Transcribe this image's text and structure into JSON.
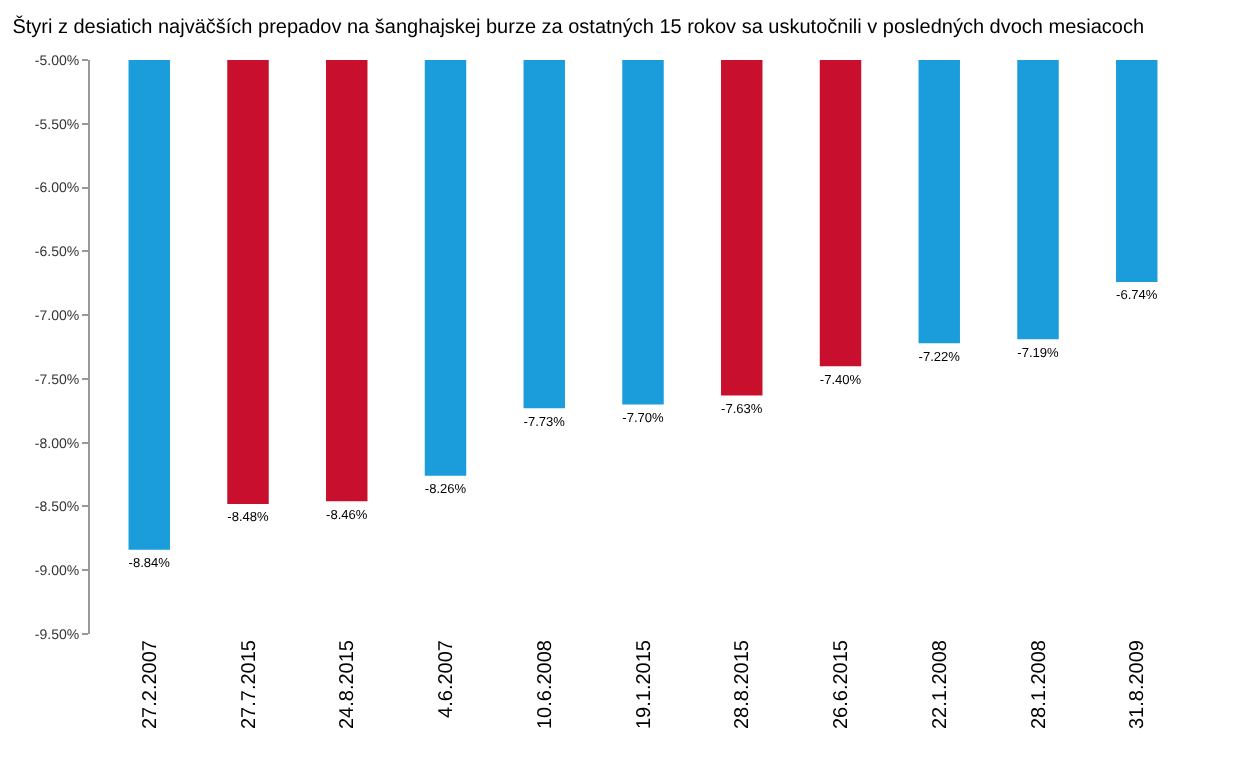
{
  "chart_data": {
    "type": "bar",
    "title": "Štyri z desiatich najväčších prepadov na šanghajskej burze za ostatných 15 rokov sa uskutočnili v posledných dvoch mesiacoch",
    "categories": [
      "27.2.2007",
      "27.7.2015",
      "24.8.2015",
      "4.6.2007",
      "10.6.2008",
      "19.1.2015",
      "28.8.2015",
      "26.6.2015",
      "22.1.2008",
      "28.1.2008",
      "31.8.2009"
    ],
    "values": [
      -8.84,
      -8.48,
      -8.46,
      -8.26,
      -7.73,
      -7.7,
      -7.63,
      -7.4,
      -7.22,
      -7.19,
      -6.74
    ],
    "value_labels": [
      "-8.84%",
      "-8.48%",
      "-8.46%",
      "-8.26%",
      "-7.73%",
      "-7.70%",
      "-7.63%",
      "-7.40%",
      "-7.22%",
      "-7.19%",
      "-6.74%"
    ],
    "colors": [
      "#1b9ddb",
      "#c8102e",
      "#c8102e",
      "#1b9ddb",
      "#1b9ddb",
      "#1b9ddb",
      "#c8102e",
      "#c8102e",
      "#1b9ddb",
      "#1b9ddb",
      "#1b9ddb"
    ],
    "ylim": [
      -9.5,
      -5.0
    ],
    "yticks": [
      {
        "value": -5.0,
        "label": "-5.00%"
      },
      {
        "value": -5.5,
        "label": "-5.50%"
      },
      {
        "value": -6.0,
        "label": "-6.00%"
      },
      {
        "value": -6.5,
        "label": "-6.50%"
      },
      {
        "value": -7.0,
        "label": "-7.00%"
      },
      {
        "value": -7.5,
        "label": "-7.50%"
      },
      {
        "value": -8.0,
        "label": "-8.00%"
      },
      {
        "value": -8.5,
        "label": "-8.50%"
      },
      {
        "value": -9.0,
        "label": "-9.00%"
      },
      {
        "value": -9.5,
        "label": "-9.50%"
      }
    ],
    "legend": false
  }
}
